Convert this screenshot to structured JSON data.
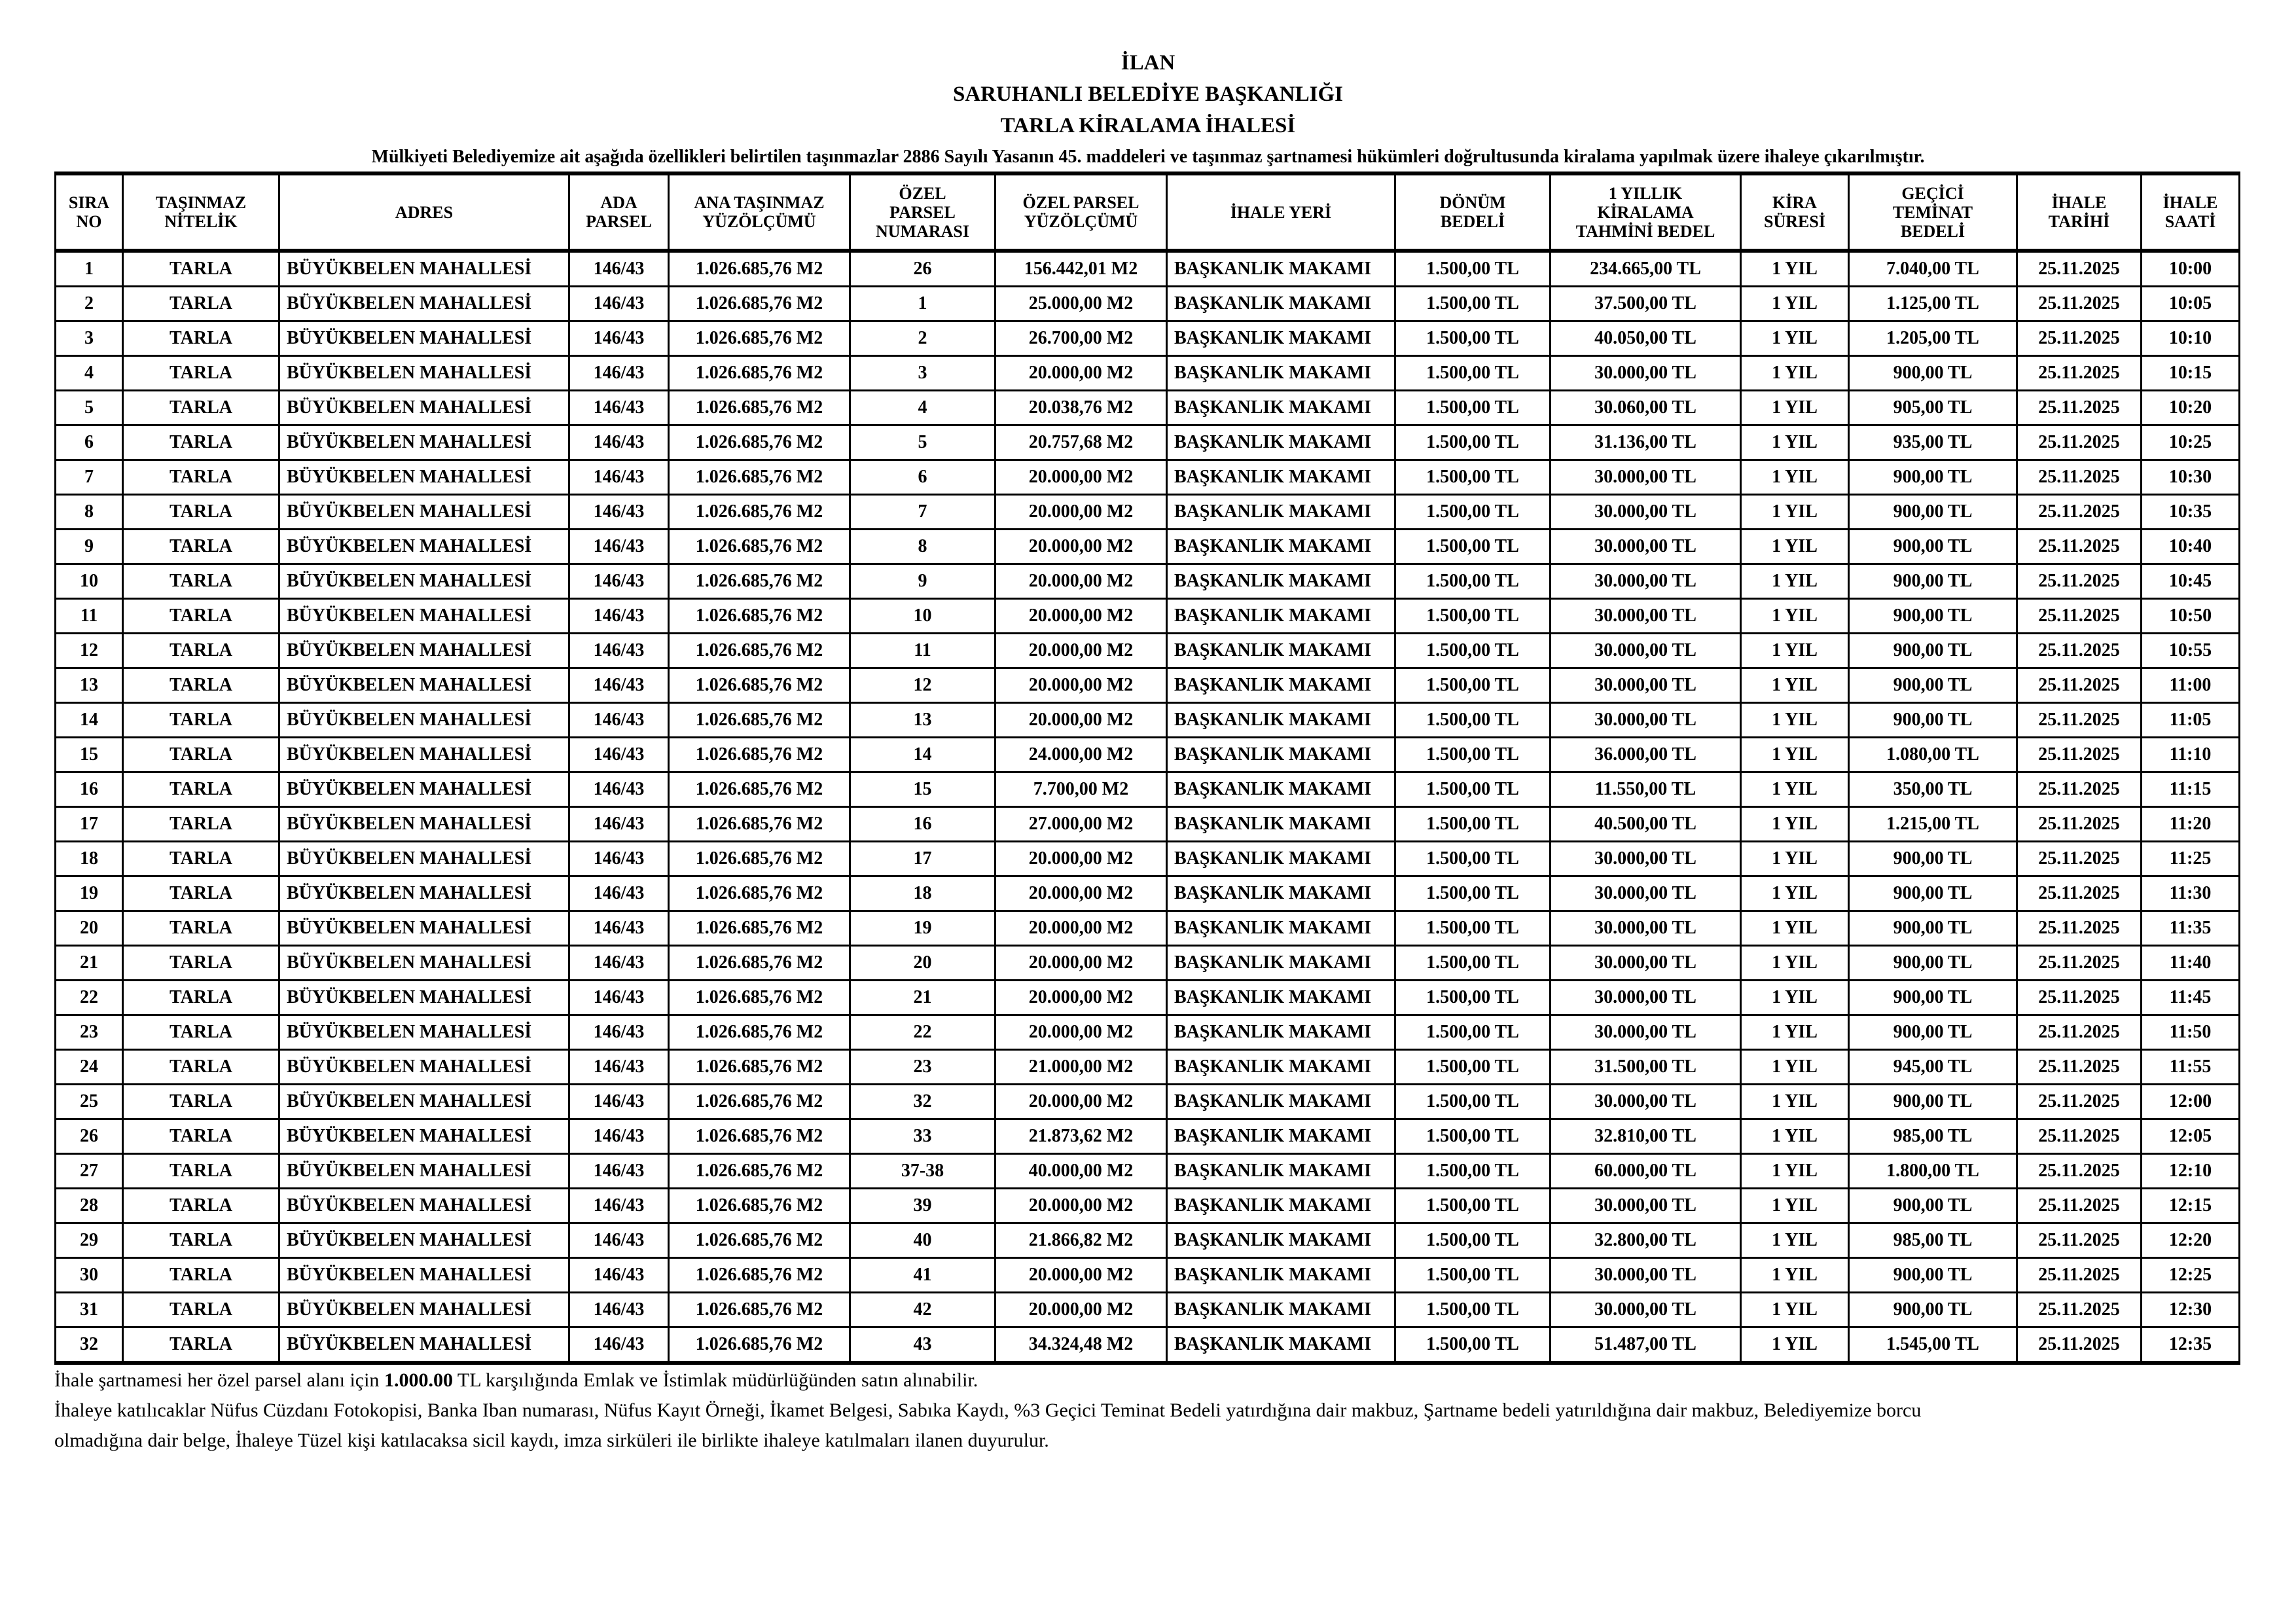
{
  "header": {
    "line1": "İLAN",
    "line2": "SARUHANLI BELEDİYE BAŞKANLIĞI",
    "line3": "TARLA  KİRALAMA İHALESİ",
    "intro": "Mülkiyeti Belediyemize ait aşağıda özellikleri belirtilen taşınmazlar 2886 Sayılı Yasanın  45. maddeleri ve taşınmaz şartnamesi hükümleri doğrultusunda kiralama yapılmak üzere ihaleye çıkarılmıştır."
  },
  "table": {
    "columns": [
      [
        "SIRA",
        "NO"
      ],
      [
        "TAŞINMAZ",
        "NİTELİK"
      ],
      [
        "ADRES"
      ],
      [
        "ADA",
        "PARSEL"
      ],
      [
        "ANA  TAŞINMAZ",
        "YÜZÖLÇÜMÜ"
      ],
      [
        "ÖZEL",
        "PARSEL",
        "NUMARASI"
      ],
      [
        "ÖZEL PARSEL",
        "YÜZÖLÇÜMÜ"
      ],
      [
        "İHALE YERİ"
      ],
      [
        "DÖNÜM",
        "BEDELİ"
      ],
      [
        "1 YILLIK",
        "KİRALAMA",
        "TAHMİNİ BEDEL"
      ],
      [
        "KİRA",
        "SÜRESİ"
      ],
      [
        "GEÇİCİ",
        "TEMİNAT",
        "BEDELİ"
      ],
      [
        "İHALE",
        "TARİHİ"
      ],
      [
        "İHALE",
        "SAATİ"
      ]
    ],
    "rows": [
      [
        "1",
        "TARLA",
        "BÜYÜKBELEN MAHALLESİ",
        "146/43",
        "1.026.685,76 M2",
        "26",
        "156.442,01 M2",
        "BAŞKANLIK MAKAMI",
        "1.500,00 TL",
        "234.665,00 TL",
        "1 YIL",
        "7.040,00 TL",
        "25.11.2025",
        "10:00"
      ],
      [
        "2",
        "TARLA",
        "BÜYÜKBELEN MAHALLESİ",
        "146/43",
        "1.026.685,76 M2",
        "1",
        "25.000,00 M2",
        "BAŞKANLIK MAKAMI",
        "1.500,00 TL",
        "37.500,00 TL",
        "1 YIL",
        "1.125,00 TL",
        "25.11.2025",
        "10:05"
      ],
      [
        "3",
        "TARLA",
        "BÜYÜKBELEN MAHALLESİ",
        "146/43",
        "1.026.685,76 M2",
        "2",
        "26.700,00 M2",
        "BAŞKANLIK MAKAMI",
        "1.500,00 TL",
        "40.050,00 TL",
        "1 YIL",
        "1.205,00 TL",
        "25.11.2025",
        "10:10"
      ],
      [
        "4",
        "TARLA",
        "BÜYÜKBELEN MAHALLESİ",
        "146/43",
        "1.026.685,76 M2",
        "3",
        "20.000,00 M2",
        "BAŞKANLIK MAKAMI",
        "1.500,00 TL",
        "30.000,00 TL",
        "1 YIL",
        "900,00 TL",
        "25.11.2025",
        "10:15"
      ],
      [
        "5",
        "TARLA",
        "BÜYÜKBELEN MAHALLESİ",
        "146/43",
        "1.026.685,76 M2",
        "4",
        "20.038,76 M2",
        "BAŞKANLIK MAKAMI",
        "1.500,00 TL",
        "30.060,00 TL",
        "1 YIL",
        "905,00 TL",
        "25.11.2025",
        "10:20"
      ],
      [
        "6",
        "TARLA",
        "BÜYÜKBELEN MAHALLESİ",
        "146/43",
        "1.026.685,76 M2",
        "5",
        "20.757,68 M2",
        "BAŞKANLIK MAKAMI",
        "1.500,00 TL",
        "31.136,00 TL",
        "1 YIL",
        "935,00 TL",
        "25.11.2025",
        "10:25"
      ],
      [
        "7",
        "TARLA",
        "BÜYÜKBELEN MAHALLESİ",
        "146/43",
        "1.026.685,76 M2",
        "6",
        "20.000,00 M2",
        "BAŞKANLIK MAKAMI",
        "1.500,00 TL",
        "30.000,00 TL",
        "1 YIL",
        "900,00 TL",
        "25.11.2025",
        "10:30"
      ],
      [
        "8",
        "TARLA",
        "BÜYÜKBELEN MAHALLESİ",
        "146/43",
        "1.026.685,76 M2",
        "7",
        "20.000,00 M2",
        "BAŞKANLIK MAKAMI",
        "1.500,00 TL",
        "30.000,00 TL",
        "1 YIL",
        "900,00 TL",
        "25.11.2025",
        "10:35"
      ],
      [
        "9",
        "TARLA",
        "BÜYÜKBELEN MAHALLESİ",
        "146/43",
        "1.026.685,76 M2",
        "8",
        "20.000,00 M2",
        "BAŞKANLIK MAKAMI",
        "1.500,00 TL",
        "30.000,00 TL",
        "1 YIL",
        "900,00 TL",
        "25.11.2025",
        "10:40"
      ],
      [
        "10",
        "TARLA",
        "BÜYÜKBELEN MAHALLESİ",
        "146/43",
        "1.026.685,76 M2",
        "9",
        "20.000,00 M2",
        "BAŞKANLIK MAKAMI",
        "1.500,00 TL",
        "30.000,00 TL",
        "1 YIL",
        "900,00 TL",
        "25.11.2025",
        "10:45"
      ],
      [
        "11",
        "TARLA",
        "BÜYÜKBELEN MAHALLESİ",
        "146/43",
        "1.026.685,76 M2",
        "10",
        "20.000,00 M2",
        "BAŞKANLIK MAKAMI",
        "1.500,00 TL",
        "30.000,00 TL",
        "1 YIL",
        "900,00 TL",
        "25.11.2025",
        "10:50"
      ],
      [
        "12",
        "TARLA",
        "BÜYÜKBELEN MAHALLESİ",
        "146/43",
        "1.026.685,76 M2",
        "11",
        "20.000,00 M2",
        "BAŞKANLIK MAKAMI",
        "1.500,00 TL",
        "30.000,00 TL",
        "1 YIL",
        "900,00 TL",
        "25.11.2025",
        "10:55"
      ],
      [
        "13",
        "TARLA",
        "BÜYÜKBELEN MAHALLESİ",
        "146/43",
        "1.026.685,76 M2",
        "12",
        "20.000,00 M2",
        "BAŞKANLIK MAKAMI",
        "1.500,00 TL",
        "30.000,00 TL",
        "1 YIL",
        "900,00 TL",
        "25.11.2025",
        "11:00"
      ],
      [
        "14",
        "TARLA",
        "BÜYÜKBELEN MAHALLESİ",
        "146/43",
        "1.026.685,76 M2",
        "13",
        "20.000,00 M2",
        "BAŞKANLIK MAKAMI",
        "1.500,00 TL",
        "30.000,00 TL",
        "1 YIL",
        "900,00 TL",
        "25.11.2025",
        "11:05"
      ],
      [
        "15",
        "TARLA",
        "BÜYÜKBELEN MAHALLESİ",
        "146/43",
        "1.026.685,76 M2",
        "14",
        "24.000,00 M2",
        "BAŞKANLIK MAKAMI",
        "1.500,00 TL",
        "36.000,00 TL",
        "1 YIL",
        "1.080,00 TL",
        "25.11.2025",
        "11:10"
      ],
      [
        "16",
        "TARLA",
        "BÜYÜKBELEN MAHALLESİ",
        "146/43",
        "1.026.685,76 M2",
        "15",
        "7.700,00 M2",
        "BAŞKANLIK MAKAMI",
        "1.500,00 TL",
        "11.550,00 TL",
        "1 YIL",
        "350,00 TL",
        "25.11.2025",
        "11:15"
      ],
      [
        "17",
        "TARLA",
        "BÜYÜKBELEN MAHALLESİ",
        "146/43",
        "1.026.685,76 M2",
        "16",
        "27.000,00 M2",
        "BAŞKANLIK MAKAMI",
        "1.500,00 TL",
        "40.500,00 TL",
        "1 YIL",
        "1.215,00 TL",
        "25.11.2025",
        "11:20"
      ],
      [
        "18",
        "TARLA",
        "BÜYÜKBELEN MAHALLESİ",
        "146/43",
        "1.026.685,76 M2",
        "17",
        "20.000,00 M2",
        "BAŞKANLIK MAKAMI",
        "1.500,00 TL",
        "30.000,00 TL",
        "1 YIL",
        "900,00 TL",
        "25.11.2025",
        "11:25"
      ],
      [
        "19",
        "TARLA",
        "BÜYÜKBELEN MAHALLESİ",
        "146/43",
        "1.026.685,76 M2",
        "18",
        "20.000,00 M2",
        "BAŞKANLIK MAKAMI",
        "1.500,00 TL",
        "30.000,00 TL",
        "1 YIL",
        "900,00 TL",
        "25.11.2025",
        "11:30"
      ],
      [
        "20",
        "TARLA",
        "BÜYÜKBELEN MAHALLESİ",
        "146/43",
        "1.026.685,76 M2",
        "19",
        "20.000,00 M2",
        "BAŞKANLIK MAKAMI",
        "1.500,00 TL",
        "30.000,00 TL",
        "1 YIL",
        "900,00 TL",
        "25.11.2025",
        "11:35"
      ],
      [
        "21",
        "TARLA",
        "BÜYÜKBELEN MAHALLESİ",
        "146/43",
        "1.026.685,76 M2",
        "20",
        "20.000,00 M2",
        "BAŞKANLIK MAKAMI",
        "1.500,00 TL",
        "30.000,00 TL",
        "1 YIL",
        "900,00 TL",
        "25.11.2025",
        "11:40"
      ],
      [
        "22",
        "TARLA",
        "BÜYÜKBELEN MAHALLESİ",
        "146/43",
        "1.026.685,76 M2",
        "21",
        "20.000,00 M2",
        "BAŞKANLIK MAKAMI",
        "1.500,00 TL",
        "30.000,00 TL",
        "1 YIL",
        "900,00 TL",
        "25.11.2025",
        "11:45"
      ],
      [
        "23",
        "TARLA",
        "BÜYÜKBELEN MAHALLESİ",
        "146/43",
        "1.026.685,76 M2",
        "22",
        "20.000,00 M2",
        "BAŞKANLIK MAKAMI",
        "1.500,00 TL",
        "30.000,00 TL",
        "1 YIL",
        "900,00 TL",
        "25.11.2025",
        "11:50"
      ],
      [
        "24",
        "TARLA",
        "BÜYÜKBELEN MAHALLESİ",
        "146/43",
        "1.026.685,76 M2",
        "23",
        "21.000,00 M2",
        "BAŞKANLIK MAKAMI",
        "1.500,00 TL",
        "31.500,00 TL",
        "1 YIL",
        "945,00 TL",
        "25.11.2025",
        "11:55"
      ],
      [
        "25",
        "TARLA",
        "BÜYÜKBELEN MAHALLESİ",
        "146/43",
        "1.026.685,76 M2",
        "32",
        "20.000,00 M2",
        "BAŞKANLIK MAKAMI",
        "1.500,00 TL",
        "30.000,00 TL",
        "1 YIL",
        "900,00 TL",
        "25.11.2025",
        "12:00"
      ],
      [
        "26",
        "TARLA",
        "BÜYÜKBELEN MAHALLESİ",
        "146/43",
        "1.026.685,76 M2",
        "33",
        "21.873,62 M2",
        "BAŞKANLIK MAKAMI",
        "1.500,00 TL",
        "32.810,00 TL",
        "1 YIL",
        "985,00 TL",
        "25.11.2025",
        "12:05"
      ],
      [
        "27",
        "TARLA",
        "BÜYÜKBELEN MAHALLESİ",
        "146/43",
        "1.026.685,76 M2",
        "37-38",
        "40.000,00 M2",
        "BAŞKANLIK MAKAMI",
        "1.500,00 TL",
        "60.000,00 TL",
        "1 YIL",
        "1.800,00 TL",
        "25.11.2025",
        "12:10"
      ],
      [
        "28",
        "TARLA",
        "BÜYÜKBELEN MAHALLESİ",
        "146/43",
        "1.026.685,76 M2",
        "39",
        "20.000,00 M2",
        "BAŞKANLIK MAKAMI",
        "1.500,00 TL",
        "30.000,00 TL",
        "1 YIL",
        "900,00 TL",
        "25.11.2025",
        "12:15"
      ],
      [
        "29",
        "TARLA",
        "BÜYÜKBELEN MAHALLESİ",
        "146/43",
        "1.026.685,76 M2",
        "40",
        "21.866,82 M2",
        "BAŞKANLIK MAKAMI",
        "1.500,00 TL",
        "32.800,00 TL",
        "1 YIL",
        "985,00 TL",
        "25.11.2025",
        "12:20"
      ],
      [
        "30",
        "TARLA",
        "BÜYÜKBELEN MAHALLESİ",
        "146/43",
        "1.026.685,76 M2",
        "41",
        "20.000,00 M2",
        "BAŞKANLIK MAKAMI",
        "1.500,00 TL",
        "30.000,00 TL",
        "1 YIL",
        "900,00 TL",
        "25.11.2025",
        "12:25"
      ],
      [
        "31",
        "TARLA",
        "BÜYÜKBELEN MAHALLESİ",
        "146/43",
        "1.026.685,76 M2",
        "42",
        "20.000,00 M2",
        "BAŞKANLIK MAKAMI",
        "1.500,00 TL",
        "30.000,00 TL",
        "1 YIL",
        "900,00 TL",
        "25.11.2025",
        "12:30"
      ],
      [
        "32",
        "TARLA",
        "BÜYÜKBELEN MAHALLESİ",
        "146/43",
        "1.026.685,76 M2",
        "43",
        "34.324,48 M2",
        "BAŞKANLIK MAKAMI",
        "1.500,00 TL",
        "51.487,00 TL",
        "1 YIL",
        "1.545,00 TL",
        "25.11.2025",
        "12:35"
      ]
    ]
  },
  "footer": {
    "note1_a": "İhale şartnamesi her özel parsel alanı için ",
    "note1_bold": "1.000.00",
    "note1_b": " TL karşılığında Emlak ve İstimlak müdürlüğünden satın alınabilir.",
    "note2_line1": "İhaleye katılıcaklar Nüfus Cüzdanı Fotokopisi, Banka Iban numarası, Nüfus Kayıt Örneği,  İkamet Belgesi, Sabıka Kaydı,  %3 Geçici Teminat Bedeli yatırdığına dair makbuz, Şartname bedeli yatırıldığına dair makbuz,  Belediyemize borcu",
    "note2_line2": "olmadığına dair belge, İhaleye Tüzel kişi katılacaksa sicil kaydı, imza sirküleri ile birlikte ihaleye katılmaları ilanen duyurulur."
  }
}
